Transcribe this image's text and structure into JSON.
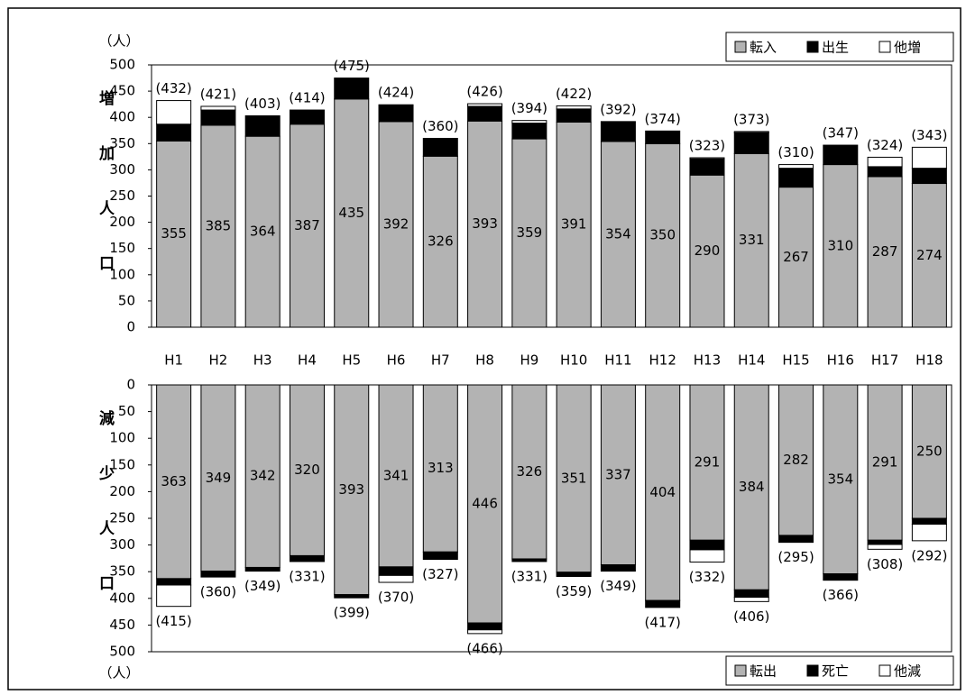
{
  "chart_data": [
    {
      "type": "bar",
      "stacked": true,
      "inverted": false,
      "side_label": "増加人口",
      "y_unit": "（人）",
      "legend": "top-right",
      "categories": [
        "H1",
        "H2",
        "H3",
        "H4",
        "H5",
        "H6",
        "H7",
        "H8",
        "H9",
        "H10",
        "H11",
        "H12",
        "H13",
        "H14",
        "H15",
        "H16",
        "H17",
        "H18"
      ],
      "series": [
        {
          "name": "転入",
          "color": "#b3b3b3",
          "values": [
            355,
            385,
            364,
            387,
            435,
            392,
            326,
            393,
            359,
            391,
            354,
            350,
            290,
            331,
            267,
            310,
            287,
            274
          ]
        },
        {
          "name": "出生",
          "color": "#000000",
          "values": [
            32,
            29,
            39,
            27,
            40,
            32,
            34,
            28,
            30,
            25,
            38,
            24,
            31,
            40,
            36,
            37,
            19,
            29
          ]
        },
        {
          "name": "他増",
          "color": "#ffffff",
          "values": [
            45,
            7,
            0,
            0,
            0,
            0,
            0,
            5,
            5,
            6,
            0,
            0,
            2,
            2,
            7,
            0,
            18,
            40
          ]
        }
      ],
      "totals": {
        "values": [
          432,
          421,
          403,
          414,
          475,
          424,
          360,
          426,
          394,
          422,
          392,
          374,
          323,
          373,
          310,
          347,
          324,
          343
        ],
        "value_labels": [
          "(432)",
          "(421)",
          "(403)",
          "(414)",
          "(475)",
          "(424)",
          "(360)",
          "(426)",
          "(394)",
          "(422)",
          "(392)",
          "(374)",
          "(323)",
          "(373)",
          "(310)",
          "(347)",
          "(324)",
          "(343)"
        ]
      },
      "ylim": [
        0,
        500
      ],
      "yticks": [
        0,
        50,
        100,
        150,
        200,
        250,
        300,
        350,
        400,
        450,
        500
      ]
    },
    {
      "type": "bar",
      "stacked": true,
      "inverted": true,
      "side_label": "減少人口",
      "y_unit": "（人）",
      "legend": "bottom-right",
      "series": [
        {
          "name": "転出",
          "color": "#b3b3b3",
          "values": [
            363,
            349,
            342,
            320,
            393,
            341,
            313,
            446,
            326,
            351,
            337,
            404,
            291,
            384,
            282,
            354,
            291,
            250
          ]
        },
        {
          "name": "死亡",
          "color": "#000000",
          "values": [
            12,
            11,
            7,
            11,
            6,
            16,
            14,
            13,
            5,
            8,
            12,
            13,
            18,
            14,
            13,
            12,
            8,
            11
          ]
        },
        {
          "name": "他減",
          "color": "#ffffff",
          "values": [
            40,
            0,
            0,
            0,
            0,
            13,
            0,
            7,
            0,
            0,
            0,
            0,
            23,
            8,
            0,
            0,
            9,
            31
          ]
        }
      ],
      "totals": {
        "values": [
          415,
          360,
          349,
          331,
          399,
          370,
          327,
          466,
          331,
          359,
          349,
          417,
          332,
          406,
          295,
          366,
          308,
          292
        ],
        "value_labels": [
          "(415)",
          "(360)",
          "(349)",
          "(331)",
          "(399)",
          "(370)",
          "(327)",
          "(466)",
          "(331)",
          "(359)",
          "(349)",
          "(417)",
          "(332)",
          "(406)",
          "(295)",
          "(366)",
          "(308)",
          "(292)"
        ]
      },
      "ylim": [
        0,
        500
      ],
      "yticks": [
        0,
        50,
        100,
        150,
        200,
        250,
        300,
        350,
        400,
        450,
        500
      ]
    }
  ]
}
